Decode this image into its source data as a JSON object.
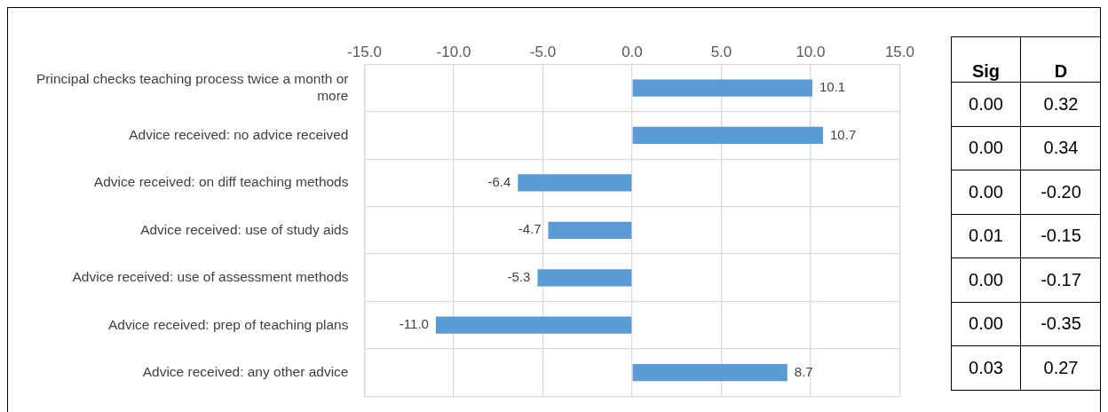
{
  "chart_data": [
    {
      "type": "bar",
      "orientation": "horizontal",
      "categories": [
        "Principal checks teaching process twice a month or more",
        "Advice received: no advice received",
        "Advice received: on diff teaching methods",
        "Advice received: use of study aids",
        "Advice received: use of assessment methods",
        "Advice received: prep of teaching plans",
        "Advice received: any other advice"
      ],
      "values": [
        10.1,
        10.7,
        -6.4,
        -4.7,
        -5.3,
        -11.0,
        8.7
      ],
      "color": "#5b9bd5",
      "value_labels": [
        "10.1",
        "10.7",
        "-6.4",
        "-4.7",
        "-5.3",
        "-11.0",
        "8.7"
      ],
      "xlim": [
        -15,
        15
      ],
      "xticks": [
        {
          "value": -15,
          "label": "-15.0"
        },
        {
          "value": -10,
          "label": "-10.0"
        },
        {
          "value": -5,
          "label": "-5.0"
        },
        {
          "value": 0,
          "label": "0.0"
        },
        {
          "value": 5,
          "label": "5.0"
        },
        {
          "value": 10,
          "label": "10.0"
        },
        {
          "value": 15,
          "label": "15.0"
        }
      ],
      "grid": true,
      "legend": false
    },
    {
      "type": "other",
      "categories": [
        "Sig",
        "D"
      ],
      "cell_labels": [
        [
          "0.00",
          "0.32"
        ],
        [
          "0.00",
          "0.34"
        ],
        [
          "0.00",
          "-0.20"
        ],
        [
          "0.01",
          "-0.15"
        ],
        [
          "0.00",
          "-0.17"
        ],
        [
          "0.00",
          "-0.35"
        ],
        [
          "0.03",
          "0.27"
        ]
      ]
    }
  ]
}
